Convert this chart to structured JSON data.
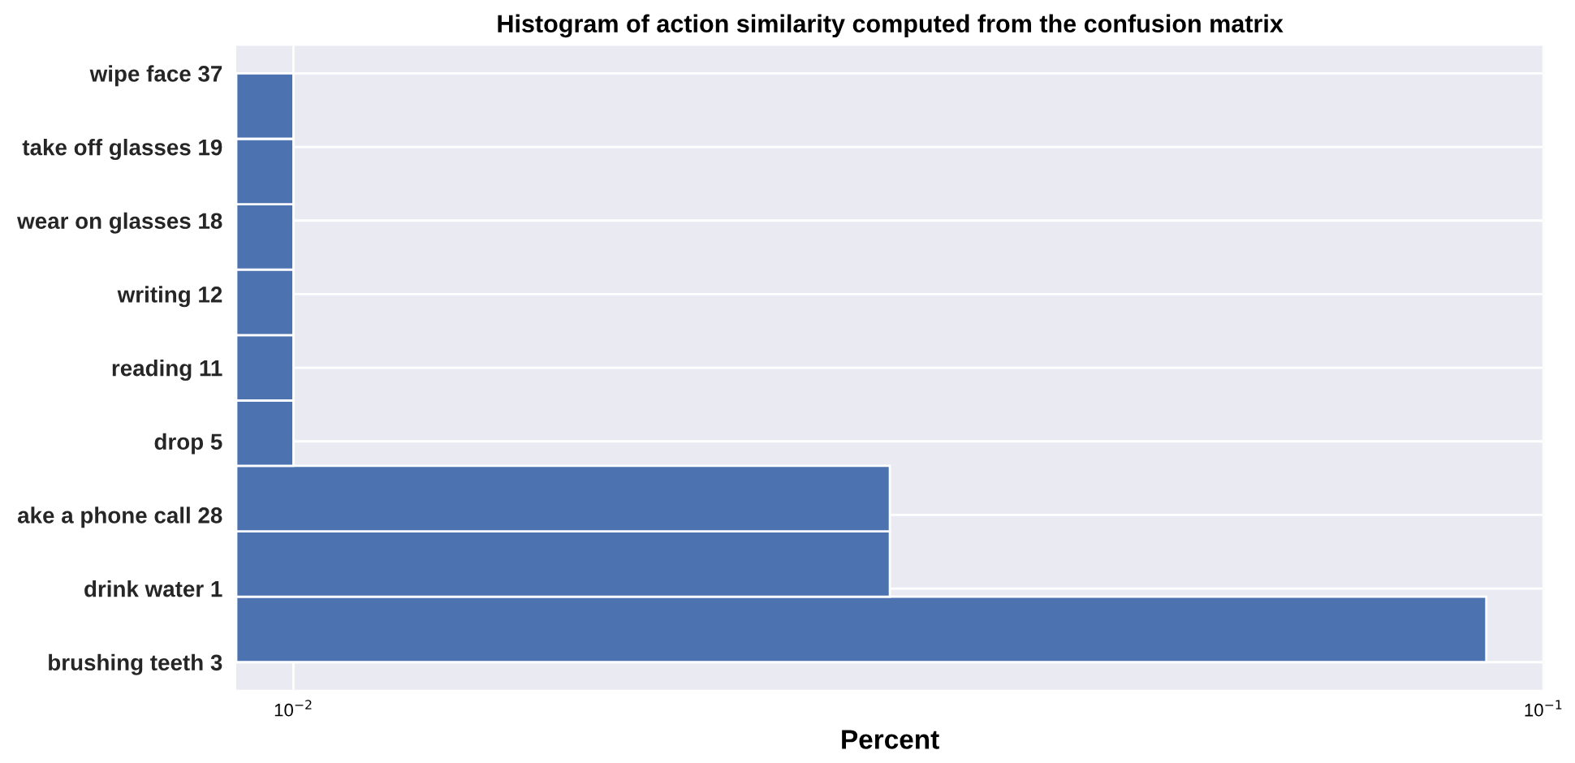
{
  "chart_data": {
    "type": "bar",
    "orientation": "horizontal",
    "title": "Histogram of action similarity computed from the confusion matrix",
    "xlabel": "Percent",
    "categories": [
      "wipe face 37",
      "take off glasses 19",
      "wear on glasses 18",
      "writing 12",
      "reading 11",
      "drop 5",
      "ake a phone call 28",
      "drink water 1",
      "brushing teeth 3"
    ],
    "values": [
      0.01,
      0.01,
      0.01,
      0.01,
      0.01,
      0.01,
      0.03,
      0.03,
      0.09
    ],
    "color": "#4c72b0",
    "log": "x",
    "xlim": [
      0.009,
      0.1
    ],
    "xticks": [
      {
        "value": 0.01,
        "label": "10$^{−2}$"
      },
      {
        "value": 0.1,
        "label": "10$^{−1}$"
      }
    ],
    "grid": true
  }
}
